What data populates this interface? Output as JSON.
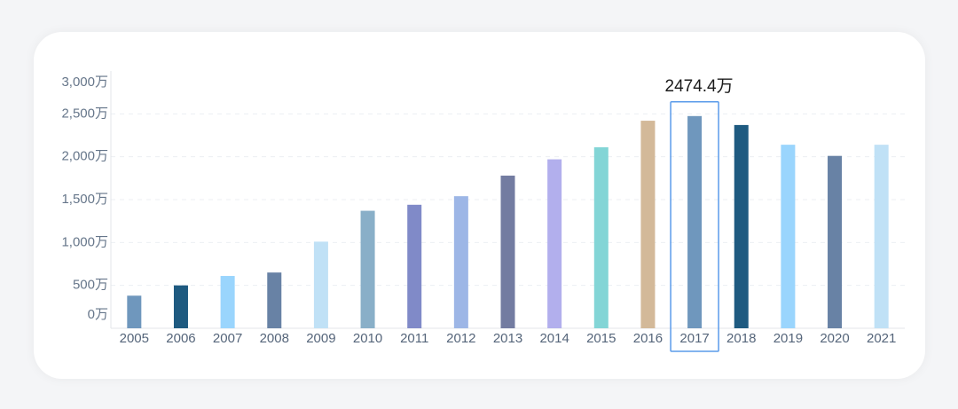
{
  "chart_data": {
    "type": "bar",
    "title": "",
    "xlabel": "",
    "ylabel": "",
    "categories": [
      "2005",
      "2006",
      "2007",
      "2008",
      "2009",
      "2010",
      "2011",
      "2012",
      "2013",
      "2014",
      "2015",
      "2016",
      "2017",
      "2018",
      "2019",
      "2020",
      "2021"
    ],
    "values": [
      380,
      500,
      610,
      650,
      1010,
      1370,
      1440,
      1540,
      1780,
      1970,
      2110,
      2420,
      2474.4,
      2370,
      2140,
      2010,
      2140
    ],
    "ylim": [
      0,
      3000
    ],
    "yticks": [
      0,
      500,
      1000,
      1500,
      2000,
      2500,
      3000
    ],
    "ytick_labels": [
      "0万",
      "500万",
      "1,000万",
      "1,500万",
      "2,000万",
      "2,500万",
      "3,000万"
    ],
    "grid": true,
    "bar_colors": [
      "#6f97bd",
      "#1e5a80",
      "#9ad5fd",
      "#6882a5",
      "#c0e1f6",
      "#89afc8",
      "#808ac8",
      "#9db6e6",
      "#737ca1",
      "#b2afed",
      "#83d5d6",
      "#d3b999",
      "#6f97bd",
      "#1e5a80",
      "#9ad5fd",
      "#6882a5",
      "#c0e1f6"
    ],
    "highlight": {
      "category": "2017",
      "label": "2474.4万"
    }
  },
  "colors": {
    "highlight_border": "#5a9bea",
    "gridline": "#eceff3",
    "axis": "#e3e6ea"
  }
}
